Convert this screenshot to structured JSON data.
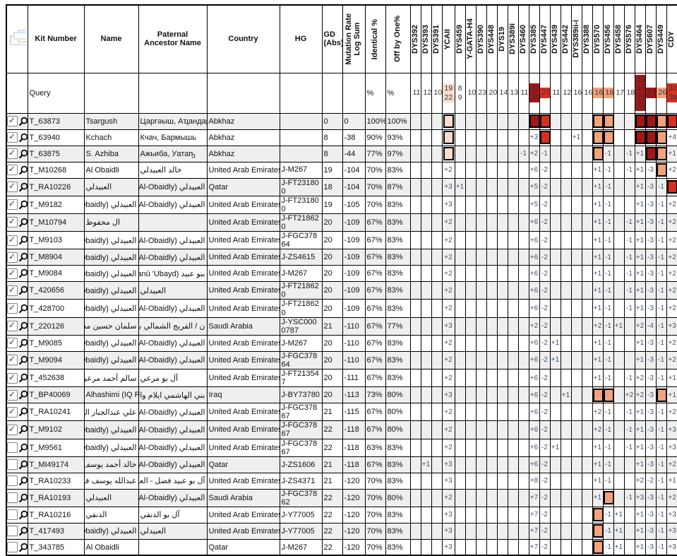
{
  "colors": {
    "dark_red": "#A31616",
    "red": "#D6301F",
    "peach": "#F2A27C",
    "light_peach": "#FBDCCB",
    "row_alt": "#EFEFEF",
    "mutation_value_text": "#44546A"
  },
  "header": {
    "tree_icon": "phylogenetic-tree-icon",
    "fixed_columns": [
      "Kit Number",
      "Name",
      "Paternal Ancestor Name",
      "Country",
      "HG",
      "GD (Abs)"
    ],
    "rotated_columns": [
      "Mutation Rate\nLog Sum",
      "Identical %",
      "Off by One%"
    ],
    "marker_columns": [
      "DYS392",
      "DYS393",
      "DYS391",
      "YCAII",
      "DYS459",
      "Y-GATA-H4",
      "DYS390",
      "DYS448",
      "DYS19",
      "DYS389i",
      "DYS460",
      "DYS385",
      "DYS447",
      "DYS439",
      "DYS442",
      "DYS389ii-i",
      "DYS388",
      "DYS570",
      "DYS456",
      "DYS458",
      "DYS576",
      "DYS464",
      "DYS607",
      "DYS449",
      "CDY"
    ]
  },
  "query_row": {
    "label": "Query",
    "identical": "%",
    "off_by_one": "%",
    "markers": [
      "11",
      "12",
      "10",
      {
        "v": "19\n22",
        "bg": "lightpeach"
      },
      {
        "v": "8\n9"
      },
      "10",
      "23",
      "20",
      "14",
      "13",
      "11",
      {
        "v": "20\n20",
        "bg": "darkred"
      },
      {
        "v": "27",
        "bg": "red"
      },
      "11",
      "12",
      "16",
      "16",
      {
        "v": "16",
        "bg": "peach"
      },
      {
        "v": "16",
        "bg": "peach"
      },
      "17",
      "18",
      {
        "v": "12\n15\n16\n18",
        "bg": "darkred"
      },
      {
        "v": "17",
        "bg": "darkred"
      },
      {
        "v": "26",
        "bg": "peach"
      },
      {
        "v": "32\n39",
        "bg": "red"
      }
    ]
  },
  "rows": [
    {
      "checked": true,
      "kit": "T_63873",
      "name": "Tsargush",
      "paternal": "Царгәыш, Аҵандара",
      "country": "Abkhaz",
      "hg": "",
      "gd": "0",
      "log_sum": "0",
      "identical": "100%",
      "off_by_one": "100%",
      "m": {
        "YCAII": "box:lightpeach",
        "DYS385": "box:darkred",
        "DYS447": "box:red",
        "DYS570": "box:peach",
        "DYS456": "box:peach",
        "DYS464": "box:darkred",
        "DYS607": "box:darkred",
        "DYS449": "box:peach",
        "CDY": "box:red"
      }
    },
    {
      "checked": true,
      "kit": "T_63940",
      "name": "Kchach",
      "paternal": "Кчач, Бармышь",
      "country": "Abkhaz",
      "hg": "",
      "gd": "8",
      "log_sum": "-38",
      "identical": "90%",
      "off_by_one": "93%",
      "m": {
        "YCAII": "box:lightpeach",
        "DYS385": "+3",
        "DYS447": "box:red",
        "DYS389ii-i": "+1",
        "DYS570": "box:peach",
        "DYS456": "box:peach",
        "DYS464": "box:darkred",
        "DYS607": "box:darkred",
        "DYS449": "box:peach",
        "CDY": "+4"
      }
    },
    {
      "checked": true,
      "kit": "T_63875",
      "name": "S. Azhiba",
      "paternal": "Ажьиба, Уатаҧ",
      "country": "Abkhaz",
      "hg": "",
      "gd": "8",
      "log_sum": "-44",
      "identical": "77%",
      "off_by_one": "97%",
      "m": {
        "YCAII": "box:lightpeach",
        "DYS460": "-1",
        "DYS385": "+2",
        "DYS447": "-1",
        "DYS570": "box:peach",
        "DYS456": "-1",
        "DYS576": "-1",
        "DYS464": "+1",
        "DYS607": "box:darkred",
        "DYS449": "box:peach",
        "CDY": "+1"
      }
    },
    {
      "checked": true,
      "kit": "T_M10268",
      "name": "Al Obaidli",
      "paternal": "خالد العبيدلي",
      "country": "United Arab Emirates",
      "hg": "J-M267",
      "gd": "19",
      "log_sum": "-104",
      "identical": "70%",
      "off_by_one": "83%",
      "m": {
        "YCAII": "+2",
        "DYS385": "+6",
        "DYS447": "-2",
        "DYS570": "+1",
        "DYS456": "-1",
        "DYS576": "-1",
        "DYS464": "+1",
        "DYS607": "-3",
        "DYS449": "box:peach",
        "CDY": "+2"
      }
    },
    {
      "checked": true,
      "kit": "T_RA10226",
      "name": "العبيدلي",
      "paternal": "العبيدلي (Al-Obaidly)",
      "country": "Qatar",
      "hg": "J-FT231800",
      "gd": "18",
      "log_sum": "-104",
      "identical": "70%",
      "off_by_one": "87%",
      "m": {
        "YCAII": "+3",
        "DYS459": "+1",
        "DYS385": "+5",
        "DYS447": "-2",
        "DYS570": "+1",
        "DYS456": "-1",
        "DYS464": "+1",
        "DYS607": "-3",
        "DYS449": "-1",
        "CDY": "box:red"
      }
    },
    {
      "checked": true,
      "kit": "T_M9182",
      "name": "العبيدلي (Al-Obaidly)",
      "paternal": "العبيدلي (Al-Obaidly)",
      "country": "United Arab Emirates",
      "hg": "J-FT231800",
      "gd": "19",
      "log_sum": "-105",
      "identical": "70%",
      "off_by_one": "83%",
      "m": {
        "YCAII": "+3",
        "DYS385": "+5",
        "DYS447": "-2",
        "DYS570": "+1",
        "DYS456": "-1",
        "DYS464": "+1",
        "DYS607": "-3",
        "DYS449": "-1",
        "CDY": "+2"
      }
    },
    {
      "checked": true,
      "kit": "T_M10794",
      "name": "ال محفوظ",
      "paternal": "",
      "country": "United Arab Emirates",
      "hg": "J-FT218620",
      "gd": "20",
      "log_sum": "-109",
      "identical": "67%",
      "off_by_one": "83%",
      "m": {
        "YCAII": "+2",
        "DYS385": "+6",
        "DYS447": "-2",
        "DYS570": "+1",
        "DYS456": "-1",
        "DYS576": "-1",
        "DYS464": "+1",
        "DYS607": "-3",
        "DYS449": "-1",
        "CDY": "+2"
      }
    },
    {
      "checked": true,
      "kit": "T_M9103",
      "name": "العبيدلي (Al-Obaidly)",
      "paternal": "العبيدلي (Al-Obaidly)",
      "country": "United Arab Emirates",
      "hg": "J-FGC37864",
      "gd": "20",
      "log_sum": "-109",
      "identical": "67%",
      "off_by_one": "83%",
      "m": {
        "YCAII": "+2",
        "DYS385": "+6",
        "DYS447": "-2",
        "DYS570": "+1",
        "DYS456": "-1",
        "DYS576": "-1",
        "DYS464": "+1",
        "DYS607": "-3",
        "DYS449": "-1",
        "CDY": "+2"
      }
    },
    {
      "checked": true,
      "kit": "T_M8904",
      "name": "العبيدلي (Al-Obaidly)",
      "paternal": "العبيدلي (Al-Obaidly)",
      "country": "United Arab Emirates",
      "hg": "J-ZS4615",
      "gd": "20",
      "log_sum": "-109",
      "identical": "67%",
      "off_by_one": "83%",
      "m": {
        "YCAII": "+2",
        "DYS385": "+6",
        "DYS447": "-2",
        "DYS570": "+1",
        "DYS456": "-1",
        "DYS576": "-1",
        "DYS464": "+1",
        "DYS607": "-3",
        "DYS449": "-1",
        "CDY": "+2"
      }
    },
    {
      "checked": true,
      "kit": "T_M9084",
      "name": "العبيدلي (Al-Obaidly)",
      "paternal": "بنو عبيد (Banū 'Ubayd)",
      "country": "United Arab Emirates",
      "hg": "J-M267",
      "gd": "20",
      "log_sum": "-109",
      "identical": "67%",
      "off_by_one": "83%",
      "m": {
        "YCAII": "+2",
        "DYS385": "+6",
        "DYS447": "-2",
        "DYS570": "+1",
        "DYS456": "-1",
        "DYS576": "-1",
        "DYS464": "+1",
        "DYS607": "-3",
        "DYS449": "-1",
        "CDY": "+2"
      }
    },
    {
      "checked": true,
      "kit": "T_420656",
      "name": "العبيدلي (Al-Obaidly)",
      "paternal": "العبيدلي",
      "country": "United Arab Emirates",
      "hg": "J-FT218620",
      "gd": "20",
      "log_sum": "-109",
      "identical": "67%",
      "off_by_one": "83%",
      "m": {
        "YCAII": "+2",
        "DYS385": "+6",
        "DYS447": "-2",
        "DYS570": "+1",
        "DYS456": "-1",
        "DYS576": "-1",
        "DYS464": "+1",
        "DYS607": "-3",
        "DYS449": "-1",
        "CDY": "+2"
      }
    },
    {
      "checked": true,
      "kit": "T_428700",
      "name": "العبيدلي (Al-Obaidly)",
      "paternal": "العبيدلي (Al-Obaidly)",
      "country": "United Arab Emirates",
      "hg": "J-FT218620",
      "gd": "20",
      "log_sum": "-109",
      "identical": "67%",
      "off_by_one": "83%",
      "m": {
        "YCAII": "+2",
        "DYS385": "+6",
        "DYS447": "-2",
        "DYS570": "+1",
        "DYS456": "-1",
        "DYS576": "-1",
        "DYS464": "+1",
        "DYS607": "-3",
        "DYS449": "-1",
        "CDY": "+2"
      }
    },
    {
      "checked": true,
      "kit": "T_220126",
      "name": "سلمان حسين محمد الحجي",
      "paternal": "ن / الفريج الشمالي بالهفوف ...",
      "country": "Saudi Arabia",
      "hg": "J-YSC0000787",
      "gd": "21",
      "log_sum": "-110",
      "identical": "67%",
      "off_by_one": "77%",
      "m": {
        "YCAII": "+3",
        "DYS385": "+2",
        "DYS447": "-2",
        "DYS570": "+2",
        "DYS456": "-1",
        "DYS458": "+1",
        "DYS464": "+2",
        "DYS607": "-4",
        "DYS449": "-1",
        "CDY": "+3"
      }
    },
    {
      "checked": true,
      "kit": "T_M9085",
      "name": "العبيدلي (Al-Obaidly)",
      "paternal": "العبيدلي (Al-Obaidly)",
      "country": "United Arab Emirates",
      "hg": "J-M267",
      "gd": "20",
      "log_sum": "-110",
      "identical": "67%",
      "off_by_one": "83%",
      "m": {
        "YCAII": "+2",
        "DYS385": "+6",
        "DYS447": "-2",
        "DYS439": "+1",
        "DYS570": "+1",
        "DYS456": "-1",
        "DYS464": "+1",
        "DYS607": "-3",
        "DYS449": "-1",
        "CDY": "+2"
      }
    },
    {
      "checked": true,
      "kit": "T_M9094",
      "name": "العبيدلي (Al-Obaidly)",
      "paternal": "العبيدلي (Al-Obaidly)",
      "country": "United Arab Emirates",
      "hg": "J-FGC37864",
      "gd": "20",
      "log_sum": "-110",
      "identical": "67%",
      "off_by_one": "83%",
      "m": {
        "YCAII": "+2",
        "DYS385": "+6",
        "DYS447": "-2",
        "DYS439": "+1",
        "DYS570": "+1",
        "DYS456": "-1",
        "DYS464": "+1",
        "DYS607": "-3",
        "DYS449": "-1",
        "CDY": "+2"
      }
    },
    {
      "checked": true,
      "kit": "T_452638",
      "name": "سالم أحمد مرعي أحمد سالم ...",
      "paternal": "آل بو مرعي",
      "country": "United Arab Emirates",
      "hg": "J-FT213547",
      "gd": "20",
      "log_sum": "-111",
      "identical": "67%",
      "off_by_one": "83%",
      "m": {
        "YCAII": "+2",
        "DYS385": "+6",
        "DYS447": "-2",
        "DYS570": "+1",
        "DYS456": "-1",
        "DYS576": "-1",
        "DYS464": "+2",
        "DYS607": "-3",
        "DYS449": "-1",
        "CDY": "+1"
      }
    },
    {
      "checked": true,
      "kit": "T_BP40069",
      "name": "Alhashimi (IQ Project)",
      "paternal": "بني الهاشمي ايلام والبصرة ...",
      "country": "Iraq",
      "hg": "J-BY73780",
      "gd": "20",
      "log_sum": "-113",
      "identical": "73%",
      "off_by_one": "80%",
      "m": {
        "YCAII": "+3",
        "DYS385": "+6",
        "DYS447": "-2",
        "DYS442": "+1",
        "DYS570": "box:peach",
        "DYS456": "box:peach",
        "DYS576": "+2",
        "DYS464": "+2",
        "DYS607": "-3",
        "DYS449": "box:peach",
        "CDY": "+1"
      }
    },
    {
      "checked": true,
      "kit": "T_RA10241",
      "name": "علي عبدالجبار العلوة العبيدلي ...",
      "paternal": "العبيدلي (Al-Obaidly)",
      "country": "United Arab Emirates",
      "hg": "J-FGC37867",
      "gd": "21",
      "log_sum": "-115",
      "identical": "67%",
      "off_by_one": "80%",
      "m": {
        "YCAII": "+2",
        "DYS385": "+6",
        "DYS447": "-2",
        "DYS570": "+2",
        "DYS456": "-1",
        "DYS576": "-1",
        "DYS464": "+1",
        "DYS607": "-3",
        "DYS449": "-1",
        "CDY": "+2"
      }
    },
    {
      "checked": true,
      "kit": "T_M9102",
      "name": "العبيدلي (Al-Obaidly)",
      "paternal": "العبيدلي (Al-Obaidly)",
      "country": "United Arab Emirates",
      "hg": "J-FGC37867",
      "gd": "22",
      "log_sum": "-118",
      "identical": "67%",
      "off_by_one": "80%",
      "m": {
        "YCAII": "+2",
        "DYS385": "+6",
        "DYS447": "-2",
        "DYS570": "+2",
        "DYS456": "-1",
        "DYS576": "-1",
        "DYS464": "+1",
        "DYS607": "-3",
        "DYS449": "-1",
        "CDY": "+3"
      }
    },
    {
      "checked": false,
      "kit": "T_M9561",
      "name": "العبيدلي (Al-Obaidly)",
      "paternal": "العبيدلي (Al-Obaidly)",
      "country": "United Arab Emirates",
      "hg": "J-FGC37867",
      "gd": "22",
      "log_sum": "-118",
      "identical": "63%",
      "off_by_one": "83%",
      "m": {
        "YCAII": "+2",
        "DYS385": "+6",
        "DYS447": "-2",
        "DYS439": "+1",
        "DYS570": "+1",
        "DYS456": "-1",
        "DYS576": "-1",
        "DYS464": "+1",
        "DYS607": "-3",
        "DYS449": "-1",
        "CDY": "+3"
      }
    },
    {
      "checked": false,
      "kit": "T_MI49174",
      "name": "خالد أحمد يوسف أحمد العبيدلي",
      "paternal": "العبيدلي (Al-Obaidly)",
      "country": "Qatar",
      "hg": "J-ZS1606",
      "gd": "21",
      "log_sum": "-118",
      "identical": "67%",
      "off_by_one": "83%",
      "m": {
        "DYS393": "+1",
        "YCAII": "+3",
        "DYS385": "+6",
        "DYS447": "-2",
        "DYS570": "+1",
        "DYS456": "-1",
        "DYS464": "+1",
        "DYS607": "-3",
        "DYS449": "-1",
        "CDY": "+2"
      }
    },
    {
      "checked": false,
      "kit": "T_RA10233",
      "name": "عبدالله يوسف فضل العبيدلي ...",
      "paternal": "آل بو عبيد فضل - العبيدلي",
      "country": "United Arab Emirates",
      "hg": "J-ZS4371",
      "gd": "21",
      "log_sum": "-120",
      "identical": "70%",
      "off_by_one": "83%",
      "m": {
        "YCAII": "+3",
        "DYS385": "+8",
        "DYS447": "-2",
        "DYS570": "+1",
        "DYS456": "-1",
        "DYS464": "+2",
        "DYS607": "-2",
        "DYS449": "-1",
        "CDY": "+1"
      }
    },
    {
      "checked": false,
      "kit": "T_RA10193",
      "name": "العبيدلي",
      "paternal": "العبيدلي (Al-Obaidly)",
      "country": "Saudi Arabia",
      "hg": "J-FGC37862",
      "gd": "22",
      "log_sum": "-120",
      "identical": "70%",
      "off_by_one": "80%",
      "m": {
        "YCAII": "+2",
        "DYS385": "+7",
        "DYS447": "-2",
        "DYS570": "+1",
        "DYS456": "box:peach",
        "DYS576": "-1",
        "DYS464": "+3",
        "DYS607": "-3",
        "DYS449": "-1",
        "CDY": "+2"
      }
    },
    {
      "checked": false,
      "kit": "T_RA10216",
      "name": "الدنقي",
      "paternal": "آل بو الدنقي",
      "country": "United Arab Emirates",
      "hg": "J-Y77005",
      "gd": "22",
      "log_sum": "-120",
      "identical": "70%",
      "off_by_one": "83%",
      "m": {
        "YCAII": "+3",
        "DYS385": "+7",
        "DYS447": "-2",
        "DYS570": "box:peach",
        "DYS456": "-1",
        "DYS458": "+1",
        "DYS464": "+1",
        "DYS607": "-3",
        "DYS449": "-1",
        "CDY": "+3"
      }
    },
    {
      "checked": false,
      "kit": "T_417493",
      "name": "العبيدلي (Al-Obaidly)",
      "paternal": "العبيدلي",
      "country": "United Arab Emirates",
      "hg": "J-Y77005",
      "gd": "22",
      "log_sum": "-120",
      "identical": "70%",
      "off_by_one": "83%",
      "m": {
        "YCAII": "+3",
        "DYS385": "+7",
        "DYS447": "-2",
        "DYS570": "box:peach",
        "DYS456": "-1",
        "DYS458": "+1",
        "DYS464": "+1",
        "DYS607": "-3",
        "DYS449": "-1",
        "CDY": "+3"
      }
    },
    {
      "checked": false,
      "kit": "T_343785",
      "name": "Al Obaidli",
      "paternal": "",
      "country": "Qatar",
      "hg": "J-M267",
      "gd": "22",
      "log_sum": "-120",
      "identical": "70%",
      "off_by_one": "83%",
      "m": {
        "YCAII": "+3",
        "DYS385": "+7",
        "DYS447": "-2",
        "DYS570": "box:peach",
        "DYS456": "-1",
        "DYS458": "+1",
        "DYS464": "+1",
        "DYS607": "-3",
        "DYS449": "-1",
        "CDY": "+3"
      }
    }
  ]
}
